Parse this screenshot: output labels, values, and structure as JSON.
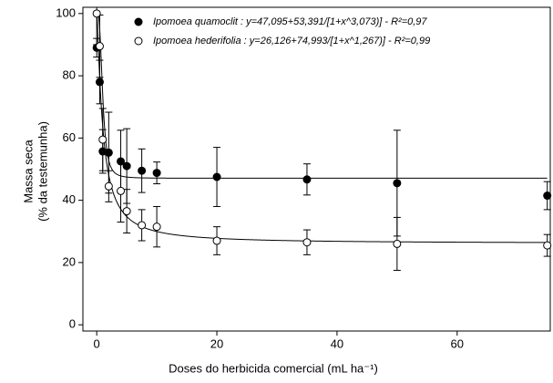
{
  "chart_data": {
    "type": "scatter",
    "xlabel": "Doses do herbicida comercial (mL ha⁻¹)",
    "ylabel": [
      "Massa seca",
      "(% da testemunha)"
    ],
    "x": [
      0,
      0.5,
      1,
      2,
      4,
      5,
      7.5,
      10,
      20,
      35,
      50,
      75
    ],
    "series": [
      {
        "name": "Ipomoea quamoclit : y=47,095+53,391/[1+x^3,073)] - R²=0,97",
        "color": "#000000",
        "filled": true,
        "values": [
          89,
          78,
          55.7,
          55.3,
          52.5,
          51,
          49.5,
          48.8,
          47.5,
          46.7,
          45.5,
          41.5
        ],
        "errors": [
          3,
          7,
          7,
          13,
          10,
          12,
          7,
          3.5,
          9.5,
          5,
          17,
          4.5
        ],
        "fit": {
          "a": 47.095,
          "b": 53.391,
          "c": 3.073
        }
      },
      {
        "name": "Ipomoea hederifolia : y=26,126+74,993/[1+x^1,267)] - R²=0,99",
        "color": "#000000",
        "filled": false,
        "values": [
          100,
          89.5,
          59.5,
          44.5,
          43,
          36.5,
          32,
          31.5,
          27,
          26.5,
          26,
          25.5
        ],
        "errors": [
          10,
          10,
          10,
          5,
          10,
          7,
          5,
          6.5,
          4.5,
          4,
          8.5,
          3.5
        ],
        "fit": {
          "a": 26.126,
          "b": 74.993,
          "c": 1.267
        }
      }
    ],
    "xlim": [
      -2.3,
      75.5
    ],
    "xticks": [
      0,
      20,
      40,
      60
    ],
    "ylim": [
      -2,
      102
    ],
    "yticks": [
      0,
      20,
      40,
      60,
      80,
      100
    ]
  }
}
